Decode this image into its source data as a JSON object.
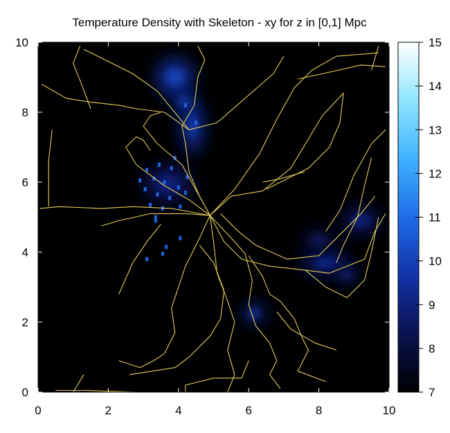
{
  "chart_data": {
    "type": "heatmap",
    "title": "Temperature Density with Skeleton - xy for z in [0,1] Mpc",
    "xlabel": "",
    "ylabel": "",
    "xlim": [
      0,
      10
    ],
    "ylim": [
      0,
      10
    ],
    "x_ticks": [
      "0",
      "2",
      "4",
      "6",
      "8",
      "10"
    ],
    "y_ticks": [
      "0",
      "2",
      "4",
      "6",
      "8",
      "10"
    ],
    "colorbar": {
      "min": 7,
      "max": 15,
      "ticks": [
        "7",
        "8",
        "9",
        "10",
        "11",
        "12",
        "13",
        "14",
        "15"
      ],
      "colors": [
        "#000000",
        "#0a1250",
        "#1233a8",
        "#1e6ce8",
        "#3fb2ff",
        "#8fe6ff",
        "#ffffff"
      ]
    },
    "background_color": "#000000",
    "skeleton_color": "#e3cf5a",
    "density_blobs": [
      {
        "x": 3.9,
        "y": 9.0,
        "sx": 0.55,
        "sy": 0.55,
        "value": 9.6
      },
      {
        "x": 4.4,
        "y": 7.6,
        "sx": 0.35,
        "sy": 0.8,
        "value": 9.3
      },
      {
        "x": 4.15,
        "y": 8.3,
        "sx": 0.3,
        "sy": 0.3,
        "value": 9.5
      },
      {
        "x": 3.7,
        "y": 5.95,
        "sx": 0.7,
        "sy": 0.55,
        "value": 8.6
      },
      {
        "x": 8.2,
        "y": 3.7,
        "sx": 0.7,
        "sy": 0.35,
        "value": 8.8
      },
      {
        "x": 9.2,
        "y": 4.9,
        "sx": 0.55,
        "sy": 0.4,
        "value": 8.6
      },
      {
        "x": 8.8,
        "y": 3.35,
        "sx": 0.35,
        "sy": 0.3,
        "value": 8.4
      },
      {
        "x": 6.15,
        "y": 2.25,
        "sx": 0.35,
        "sy": 0.28,
        "value": 9.2
      },
      {
        "x": 8.0,
        "y": 4.35,
        "sx": 0.5,
        "sy": 0.3,
        "value": 8.2
      }
    ],
    "hot_pixels": [
      [
        3.1,
        6.35
      ],
      [
        3.45,
        6.5
      ],
      [
        3.8,
        6.4
      ],
      [
        3.3,
        6.1
      ],
      [
        3.6,
        6.0
      ],
      [
        4.0,
        5.85
      ],
      [
        3.05,
        5.8
      ],
      [
        3.4,
        5.65
      ],
      [
        3.75,
        5.55
      ],
      [
        4.2,
        5.7
      ],
      [
        3.2,
        5.35
      ],
      [
        3.55,
        5.25
      ],
      [
        4.05,
        5.3
      ],
      [
        3.35,
        5.0
      ],
      [
        4.25,
        6.15
      ],
      [
        3.9,
        6.7
      ],
      [
        2.9,
        6.05
      ],
      [
        3.65,
        4.15
      ],
      [
        3.1,
        3.8
      ],
      [
        4.05,
        4.4
      ],
      [
        3.55,
        3.95
      ],
      [
        4.5,
        7.7
      ],
      [
        4.2,
        8.2
      ],
      [
        3.35,
        4.9
      ]
    ],
    "skeleton": [
      [
        [
          4.9,
          5.05
        ],
        [
          4.6,
          5.6
        ],
        [
          4.3,
          6.3
        ],
        [
          4.2,
          7.1
        ],
        [
          4.1,
          7.6
        ],
        [
          4.45,
          8.2
        ],
        [
          4.55,
          9.0
        ],
        [
          4.75,
          9.5
        ],
        [
          4.55,
          9.9
        ]
      ],
      [
        [
          4.9,
          5.05
        ],
        [
          5.6,
          5.8
        ],
        [
          6.3,
          6.8
        ],
        [
          6.8,
          7.8
        ],
        [
          7.3,
          8.7
        ],
        [
          7.8,
          9.2
        ],
        [
          8.5,
          9.6
        ],
        [
          9.7,
          9.7
        ]
      ],
      [
        [
          9.9,
          9.3
        ],
        [
          9.2,
          9.35
        ],
        [
          8.1,
          9.1
        ],
        [
          7.4,
          8.95
        ]
      ],
      [
        [
          4.9,
          5.05
        ],
        [
          5.5,
          5.6
        ],
        [
          6.4,
          5.75
        ],
        [
          7.2,
          6.4
        ],
        [
          8.1,
          7.9
        ],
        [
          8.7,
          8.55
        ],
        [
          8.6,
          7.7
        ],
        [
          8.3,
          7.0
        ],
        [
          7.7,
          6.4
        ],
        [
          7.1,
          6.1
        ],
        [
          6.5,
          5.8
        ]
      ],
      [
        [
          4.9,
          5.05
        ],
        [
          5.3,
          4.3
        ],
        [
          5.8,
          3.8
        ],
        [
          6.6,
          3.6
        ],
        [
          7.5,
          3.5
        ],
        [
          8.3,
          3.4
        ],
        [
          9.3,
          3.8
        ],
        [
          9.6,
          4.6
        ],
        [
          9.9,
          5.1
        ]
      ],
      [
        [
          4.9,
          5.05
        ],
        [
          5.6,
          4.3
        ],
        [
          5.9,
          3.95
        ],
        [
          6.1,
          3.2
        ],
        [
          6.0,
          2.5
        ],
        [
          6.2,
          1.9
        ],
        [
          6.6,
          1.4
        ],
        [
          6.8,
          0.9
        ],
        [
          6.6,
          0.5
        ],
        [
          6.9,
          0.1
        ]
      ],
      [
        [
          4.9,
          5.05
        ],
        [
          5.0,
          4.3
        ],
        [
          5.1,
          3.4
        ],
        [
          5.4,
          2.6
        ],
        [
          5.6,
          2.0
        ],
        [
          5.4,
          1.2
        ],
        [
          5.6,
          0.5
        ],
        [
          5.4,
          0.0
        ]
      ],
      [
        [
          4.9,
          5.05
        ],
        [
          4.6,
          4.4
        ],
        [
          4.2,
          3.6
        ],
        [
          4.0,
          3.0
        ],
        [
          3.8,
          2.4
        ],
        [
          3.9,
          1.7
        ],
        [
          3.6,
          1.1
        ],
        [
          3.3,
          0.9
        ],
        [
          2.9,
          0.7
        ],
        [
          2.3,
          0.9
        ]
      ],
      [
        [
          4.9,
          5.05
        ],
        [
          4.2,
          5.1
        ],
        [
          3.2,
          5.1
        ],
        [
          2.3,
          4.9
        ],
        [
          1.8,
          4.75
        ]
      ],
      [
        [
          4.9,
          5.05
        ],
        [
          3.8,
          5.25
        ],
        [
          2.7,
          5.3
        ],
        [
          1.8,
          5.25
        ],
        [
          0.6,
          5.3
        ],
        [
          0.05,
          5.25
        ]
      ],
      [
        [
          4.9,
          5.05
        ],
        [
          4.3,
          5.5
        ],
        [
          3.6,
          5.9
        ],
        [
          2.8,
          6.5
        ],
        [
          2.5,
          7.0
        ],
        [
          2.8,
          7.3
        ],
        [
          3.0,
          7.2
        ],
        [
          3.2,
          6.9
        ]
      ],
      [
        [
          4.9,
          5.05
        ],
        [
          4.1,
          6.5
        ],
        [
          3.4,
          7.1
        ],
        [
          3.0,
          7.6
        ],
        [
          3.2,
          7.9
        ],
        [
          3.5,
          8.0
        ]
      ],
      [
        [
          4.3,
          7.5
        ],
        [
          3.6,
          8.0
        ],
        [
          2.8,
          8.1
        ],
        [
          2.3,
          8.2
        ],
        [
          1.4,
          8.3
        ],
        [
          0.8,
          8.4
        ],
        [
          0.1,
          8.8
        ]
      ],
      [
        [
          4.3,
          7.5
        ],
        [
          3.4,
          8.6
        ],
        [
          2.7,
          9.1
        ],
        [
          2.1,
          9.4
        ],
        [
          1.3,
          9.8
        ]
      ],
      [
        [
          4.3,
          7.5
        ],
        [
          5.1,
          7.7
        ],
        [
          5.9,
          8.4
        ],
        [
          6.7,
          9.1
        ],
        [
          7.0,
          9.6
        ]
      ],
      [
        [
          5.2,
          5.1
        ],
        [
          5.7,
          4.6
        ],
        [
          6.2,
          4.2
        ],
        [
          7.1,
          3.8
        ],
        [
          8.0,
          3.9
        ],
        [
          8.7,
          4.6
        ],
        [
          9.2,
          5.1
        ],
        [
          9.6,
          5.6
        ]
      ],
      [
        [
          7.6,
          3.5
        ],
        [
          8.2,
          3.0
        ],
        [
          8.8,
          2.7
        ],
        [
          9.3,
          3.2
        ],
        [
          9.5,
          4.0
        ],
        [
          9.7,
          5.0
        ]
      ],
      [
        [
          9.5,
          6.7
        ],
        [
          9.3,
          5.9
        ],
        [
          9.1,
          5.0
        ],
        [
          8.7,
          4.2
        ],
        [
          8.5,
          3.7
        ]
      ],
      [
        [
          6.0,
          3.9
        ],
        [
          6.4,
          3.3
        ],
        [
          6.6,
          2.8
        ],
        [
          6.9,
          2.6
        ],
        [
          7.3,
          2.1
        ],
        [
          7.5,
          1.6
        ],
        [
          7.7,
          1.2
        ],
        [
          7.4,
          0.6
        ],
        [
          8.2,
          0.3
        ]
      ],
      [
        [
          4.6,
          4.2
        ],
        [
          5.0,
          3.7
        ],
        [
          5.3,
          2.9
        ],
        [
          5.2,
          2.1
        ],
        [
          4.9,
          1.6
        ],
        [
          4.3,
          1.0
        ],
        [
          3.9,
          0.7
        ],
        [
          2.6,
          0.5
        ]
      ],
      [
        [
          6.0,
          0.9
        ],
        [
          5.8,
          0.4
        ],
        [
          5.0,
          0.4
        ],
        [
          4.2,
          0.2
        ],
        [
          4.2,
          0.0
        ]
      ],
      [
        [
          0.5,
          0.05
        ],
        [
          1.3,
          0.05
        ],
        [
          2.8,
          0.0
        ]
      ],
      [
        [
          1.0,
          0.0
        ],
        [
          1.3,
          0.5
        ]
      ],
      [
        [
          0.4,
          7.5
        ],
        [
          0.3,
          6.6
        ],
        [
          0.3,
          5.3
        ]
      ],
      [
        [
          1.5,
          8.1
        ],
        [
          1.2,
          8.9
        ],
        [
          1.0,
          9.4
        ],
        [
          1.2,
          9.9
        ]
      ],
      [
        [
          2.3,
          2.8
        ],
        [
          2.7,
          3.7
        ],
        [
          3.1,
          4.3
        ],
        [
          3.5,
          4.8
        ]
      ],
      [
        [
          6.4,
          6.0
        ],
        [
          6.9,
          6.1
        ],
        [
          7.6,
          6.3
        ]
      ],
      [
        [
          9.7,
          9.9
        ],
        [
          9.5,
          9.2
        ]
      ],
      [
        [
          6.8,
          2.3
        ],
        [
          7.2,
          1.8
        ],
        [
          7.9,
          1.4
        ],
        [
          8.5,
          1.2
        ]
      ],
      [
        [
          9.9,
          7.5
        ],
        [
          9.5,
          7.1
        ],
        [
          9.0,
          6.2
        ],
        [
          8.6,
          5.2
        ],
        [
          8.2,
          4.6
        ]
      ]
    ]
  }
}
